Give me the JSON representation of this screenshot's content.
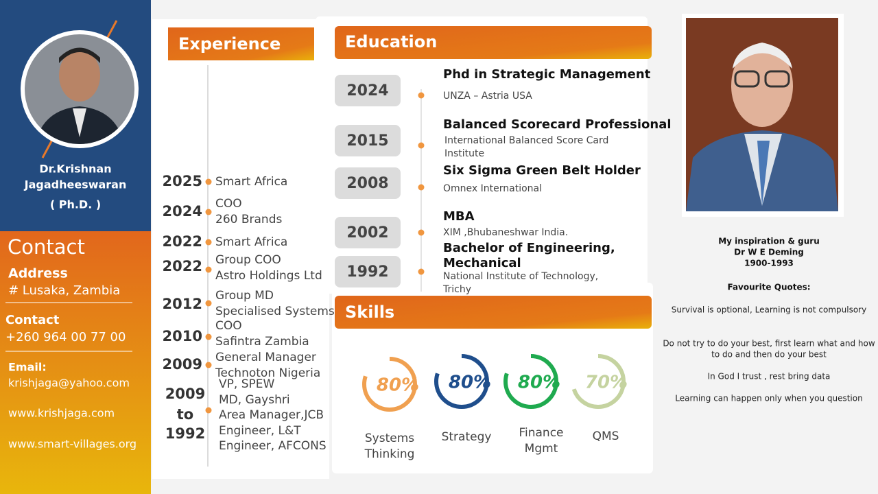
{
  "profile": {
    "name_lines": [
      "Dr.Krishnan",
      "Jagadheeswaran",
      "( Ph.D. )"
    ],
    "contact_title": "Contact",
    "address_label": "Address",
    "address": "# Lusaka, Zambia",
    "phone_label": "Contact",
    "phone": "+260 964 00 77 00",
    "email_label": "Email:",
    "email": "krishjaga@yahoo.com",
    "websites": [
      "www.krishjaga.com",
      "www.smart-villages.org"
    ]
  },
  "experience": {
    "title": "Experience",
    "items": [
      {
        "years": [
          "2025"
        ],
        "lines": [
          "Smart Africa"
        ]
      },
      {
        "years": [
          "2024"
        ],
        "lines": [
          "COO",
          "260 Brands"
        ]
      },
      {
        "years": [
          "2022"
        ],
        "lines": [
          "Smart Africa"
        ]
      },
      {
        "years": [
          "2022"
        ],
        "lines": [
          "Group COO",
          "Astro Holdings Ltd"
        ]
      },
      {
        "years": [
          "2012"
        ],
        "lines": [
          "Group MD",
          "Specialised Systems"
        ]
      },
      {
        "years": [
          "2010"
        ],
        "lines": [
          "COO",
          "Safintra Zambia"
        ]
      },
      {
        "years": [
          "2009"
        ],
        "lines": [
          "General Manager",
          "Technoton Nigeria"
        ]
      },
      {
        "years": [
          "2009",
          "to",
          "1992"
        ],
        "lines": [
          "VP, SPEW",
          "MD, Gayshri",
          "Area Manager,JCB",
          "Engineer, L&T",
          "Engineer, AFCONS"
        ]
      }
    ]
  },
  "education": {
    "title": "Education",
    "items": [
      {
        "year": "2024",
        "title": [
          "Phd in Strategic Management"
        ],
        "detail": [
          "UNZA – Astria USA"
        ]
      },
      {
        "year": "2015",
        "title": [
          "Balanced Scorecard Professional"
        ],
        "detail": [
          "International Balanced Score Card",
          "Institute"
        ]
      },
      {
        "year": "2008",
        "title": [
          "Six Sigma Green Belt Holder"
        ],
        "detail": [
          "Omnex International"
        ]
      },
      {
        "year": "2002",
        "title": [
          "MBA"
        ],
        "detail": [
          "XIM ,Bhubaneshwar India."
        ]
      },
      {
        "year": "1992",
        "title": [
          "Bachelor of Engineering,",
          "Mechanical"
        ],
        "detail": [
          "National Institute of Technology,",
          "Trichy"
        ]
      }
    ]
  },
  "skills": {
    "title": "Skills",
    "items": [
      {
        "name": [
          "Systems",
          "Thinking"
        ],
        "value": 80,
        "label": "80%",
        "color": "#f0a050"
      },
      {
        "name": [
          "Strategy"
        ],
        "value": 80,
        "label": "80%",
        "color": "#1f4e8c"
      },
      {
        "name": [
          "Finance",
          "Mgmt"
        ],
        "value": 80,
        "label": "80%",
        "color": "#1faa4f"
      },
      {
        "name": [
          "QMS"
        ],
        "value": 70,
        "label": "70%",
        "color": "#c5d3a0"
      }
    ]
  },
  "inspiration": {
    "caption": [
      "My inspiration & guru",
      "Dr W E Deming",
      "1900-1993"
    ],
    "quotes_title": "Favourite Quotes:",
    "quotes": [
      [
        "Survival is optional, Learning is not compulsory"
      ],
      [
        "Do not try to do your best, first learn what and how",
        "to do and then do your best"
      ],
      [
        "In God I trust , rest bring data"
      ],
      [
        "Learning can happen only when you question"
      ]
    ]
  }
}
